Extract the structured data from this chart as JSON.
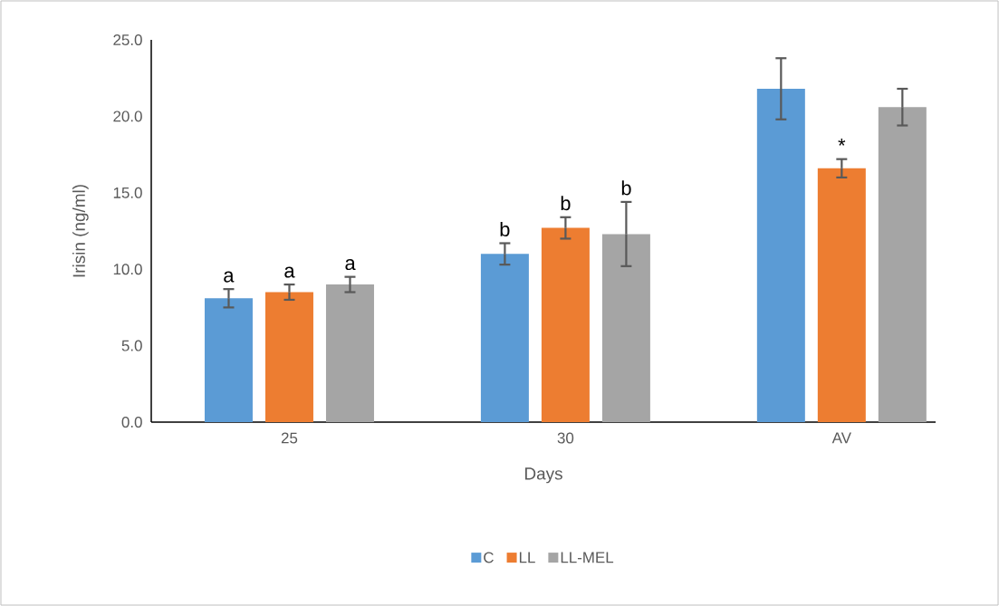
{
  "chart_data": {
    "type": "bar",
    "xlabel": "Days",
    "ylabel": "Irisin (ng/ml)",
    "categories": [
      "25",
      "30",
      "AV"
    ],
    "series": [
      {
        "name": "C",
        "color": "#5b9bd5",
        "values": [
          8.1,
          11.0,
          21.8
        ],
        "errors": [
          0.6,
          0.7,
          2.0
        ]
      },
      {
        "name": "LL",
        "color": "#ed7d31",
        "values": [
          8.5,
          12.7,
          16.6
        ],
        "errors": [
          0.5,
          0.7,
          0.6
        ]
      },
      {
        "name": "LL-MEL",
        "color": "#a5a5a5",
        "values": [
          9.0,
          12.3,
          20.6
        ],
        "errors": [
          0.5,
          2.1,
          1.2
        ]
      }
    ],
    "ylim": [
      0,
      25
    ],
    "yticks": [
      {
        "value": 0,
        "label": "0.0"
      },
      {
        "value": 5,
        "label": "5.0"
      },
      {
        "value": 10,
        "label": "10.0"
      },
      {
        "value": 15,
        "label": "15.0"
      },
      {
        "value": 20,
        "label": "20.0"
      },
      {
        "value": 25,
        "label": "25.0"
      }
    ],
    "annotations": [
      "a",
      "a",
      "a",
      "b",
      "b",
      "b",
      "*"
    ],
    "grid": false,
    "legend": "bottom"
  }
}
